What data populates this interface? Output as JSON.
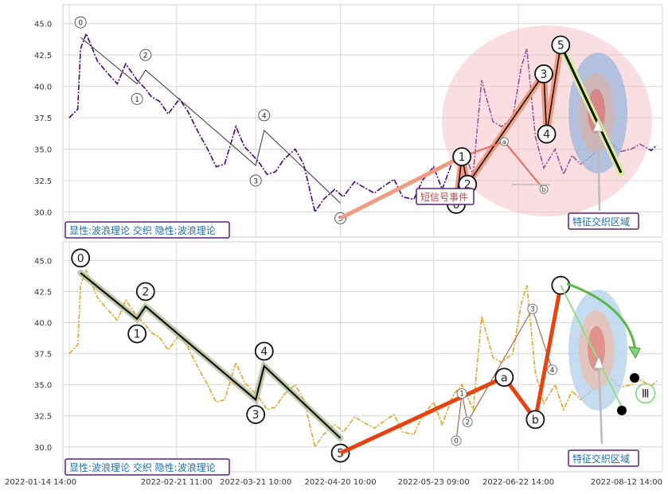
{
  "chart_data": [
    {
      "type": "line",
      "panel": "top",
      "ylim": [
        28.0,
        46.5
      ],
      "yticks": [
        "45.0",
        "42.5",
        "40.0",
        "37.5",
        "35.0",
        "32.5",
        "30.0"
      ],
      "grid": true,
      "price_series": {
        "name": "",
        "color": "#4b0082",
        "x": [
          "2022-01-14",
          "2022-01-17",
          "2022-01-18",
          "2022-01-20",
          "2022-01-24",
          "2022-01-27",
          "2022-01-31",
          "2022-02-03",
          "2022-02-07",
          "2022-02-10",
          "2022-02-12",
          "2022-02-15",
          "2022-02-18",
          "2022-02-22",
          "2022-02-25",
          "2022-03-01",
          "2022-03-04",
          "2022-03-07",
          "2022-03-10",
          "2022-03-14",
          "2022-03-17",
          "2022-03-20",
          "2022-03-22",
          "2022-03-25",
          "2022-03-28",
          "2022-03-31",
          "2022-04-04",
          "2022-04-07",
          "2022-04-11",
          "2022-04-14",
          "2022-04-18",
          "2022-04-21",
          "2022-04-25",
          "2022-04-28",
          "2022-05-02",
          "2022-05-05",
          "2022-05-09",
          "2022-05-12",
          "2022-05-16",
          "2022-05-19",
          "2022-05-23",
          "2022-05-26",
          "2022-05-30",
          "2022-06-02",
          "2022-06-06",
          "2022-06-09",
          "2022-06-13",
          "2022-06-16",
          "2022-06-20",
          "2022-06-23",
          "2022-06-25",
          "2022-06-28",
          "2022-07-01",
          "2022-07-05",
          "2022-07-08",
          "2022-07-11",
          "2022-07-14",
          "2022-07-18",
          "2022-07-21",
          "2022-07-25",
          "2022-07-28",
          "2022-08-01",
          "2022-08-04",
          "2022-08-08",
          "2022-08-10"
        ],
        "y": [
          37.5,
          38.2,
          43.0,
          44.2,
          42.0,
          41.2,
          40.2,
          41.8,
          40.5,
          39.8,
          39.2,
          38.8,
          37.8,
          39.0,
          38.0,
          36.2,
          35.0,
          33.6,
          33.8,
          36.8,
          35.2,
          34.5,
          34.0,
          33.0,
          33.2,
          34.2,
          35.0,
          33.8,
          30.0,
          31.0,
          31.8,
          31.2,
          32.4,
          32.0,
          31.5,
          32.0,
          32.6,
          31.2,
          31.0,
          32.5,
          33.6,
          31.8,
          34.2,
          35.0,
          33.0,
          40.5,
          37.2,
          36.8,
          37.5,
          41.5,
          43.0,
          36.0,
          33.5,
          35.0,
          33.0,
          34.5,
          33.8,
          34.5,
          35.2,
          35.5,
          34.8,
          35.0,
          35.4,
          34.9,
          35.3
        ]
      },
      "wave_markers": [
        {
          "label": "0",
          "x": "2022-01-18",
          "y": 45.1
        },
        {
          "label": "1",
          "x": "2022-02-07",
          "y": 39.0
        },
        {
          "label": "2",
          "x": "2022-02-10",
          "y": 42.5
        },
        {
          "label": "3",
          "x": "2022-03-21",
          "y": 32.5
        },
        {
          "label": "4",
          "x": "2022-03-24",
          "y": 37.7
        },
        {
          "label": "5",
          "x": "2022-04-20",
          "y": 29.5
        }
      ],
      "big_wave_markers": [
        {
          "label": "1",
          "x": "2022-06-02",
          "y": 34.4
        },
        {
          "label": "2",
          "x": "2022-06-04",
          "y": 32.2
        },
        {
          "label": "3",
          "x": "2022-07-01",
          "y": 41.0
        },
        {
          "label": "4",
          "x": "2022-07-02",
          "y": 36.2
        },
        {
          "label": "5",
          "x": "2022-07-07",
          "y": 43.3
        },
        {
          "label": "0",
          "x": "2022-05-31",
          "y": 30.6
        }
      ],
      "small_markers": [
        {
          "label": "a",
          "x": "2022-06-17",
          "y": 35.6
        },
        {
          "label": "b",
          "x": "2022-07-01",
          "y": 31.8
        }
      ],
      "annotations": {
        "short_signal": "短信号事件",
        "feature_zone": "特征交织区域",
        "legend": "显性:波浪理论 交织 隐性:波浪理论"
      }
    },
    {
      "type": "line",
      "panel": "bottom",
      "ylim": [
        28.0,
        46.5
      ],
      "yticks": [
        "45.0",
        "42.5",
        "40.0",
        "37.5",
        "35.0",
        "32.5",
        "30.0"
      ],
      "xticks": [
        "2022-01-14 14:00",
        "2022-02-21 11:00",
        "2022-03-21 10:00",
        "2022-04-20 10:00",
        "2022-05-23 09:00",
        "2022-06-22 14:00",
        "2022-08-12 14:00"
      ],
      "grid": true,
      "price_series": {
        "name": "",
        "color": "#e8a020",
        "x": [
          "2022-01-14",
          "2022-01-17",
          "2022-01-18",
          "2022-01-20",
          "2022-01-24",
          "2022-01-27",
          "2022-01-31",
          "2022-02-03",
          "2022-02-07",
          "2022-02-10",
          "2022-02-12",
          "2022-02-15",
          "2022-02-18",
          "2022-02-22",
          "2022-02-25",
          "2022-03-01",
          "2022-03-04",
          "2022-03-07",
          "2022-03-10",
          "2022-03-14",
          "2022-03-17",
          "2022-03-20",
          "2022-03-22",
          "2022-03-25",
          "2022-03-28",
          "2022-03-31",
          "2022-04-04",
          "2022-04-07",
          "2022-04-11",
          "2022-04-14",
          "2022-04-18",
          "2022-04-21",
          "2022-04-25",
          "2022-04-28",
          "2022-05-02",
          "2022-05-05",
          "2022-05-09",
          "2022-05-12",
          "2022-05-16",
          "2022-05-19",
          "2022-05-23",
          "2022-05-26",
          "2022-05-30",
          "2022-06-02",
          "2022-06-06",
          "2022-06-09",
          "2022-06-13",
          "2022-06-16",
          "2022-06-20",
          "2022-06-23",
          "2022-06-25",
          "2022-06-28",
          "2022-07-01",
          "2022-07-05",
          "2022-07-08",
          "2022-07-11",
          "2022-07-14",
          "2022-07-18",
          "2022-07-21",
          "2022-07-25",
          "2022-07-28",
          "2022-08-01",
          "2022-08-04",
          "2022-08-08",
          "2022-08-10"
        ],
        "y": [
          37.5,
          38.2,
          43.0,
          44.2,
          42.0,
          41.2,
          40.2,
          41.8,
          40.5,
          39.8,
          39.2,
          38.8,
          37.8,
          39.0,
          38.0,
          36.2,
          35.0,
          33.6,
          33.8,
          36.8,
          35.2,
          34.5,
          34.0,
          33.0,
          33.2,
          34.2,
          35.0,
          33.8,
          30.0,
          31.0,
          31.8,
          31.2,
          32.4,
          32.0,
          31.5,
          32.0,
          32.6,
          31.2,
          31.0,
          32.5,
          33.6,
          31.8,
          34.2,
          35.0,
          33.0,
          40.5,
          37.2,
          36.8,
          37.5,
          41.5,
          43.0,
          36.0,
          33.5,
          35.0,
          33.0,
          34.5,
          33.8,
          34.5,
          35.2,
          35.5,
          34.8,
          35.0,
          35.4,
          34.9,
          35.3
        ]
      },
      "wave_markers": [
        {
          "label": "0",
          "x": "2022-01-18",
          "y": 45.2
        },
        {
          "label": "1",
          "x": "2022-02-07",
          "y": 39.1
        },
        {
          "label": "2",
          "x": "2022-02-10",
          "y": 42.5
        },
        {
          "label": "3",
          "x": "2022-03-21",
          "y": 32.6
        },
        {
          "label": "4",
          "x": "2022-03-24",
          "y": 37.7
        },
        {
          "label": "5",
          "x": "2022-04-20",
          "y": 29.5
        }
      ],
      "small_markers": [
        {
          "label": "0",
          "x": "2022-05-31",
          "y": 30.5
        },
        {
          "label": "1",
          "x": "2022-06-02",
          "y": 34.3
        },
        {
          "label": "2",
          "x": "2022-06-04",
          "y": 32.0
        },
        {
          "label": "3",
          "x": "2022-06-27",
          "y": 41.1
        },
        {
          "label": "4",
          "x": "2022-07-04",
          "y": 36.2
        }
      ],
      "big_markers": [
        {
          "label": "a",
          "x": "2022-06-17",
          "y": 35.6
        },
        {
          "label": "b",
          "x": "2022-06-28",
          "y": 32.2
        },
        {
          "label": "Ⅲ",
          "x": "2022-08-06",
          "y": 34.3
        }
      ],
      "annotations": {
        "feature_zone": "特征交织区域",
        "legend": "显性:波浪理论 交织 隐性:波浪理论"
      }
    }
  ]
}
